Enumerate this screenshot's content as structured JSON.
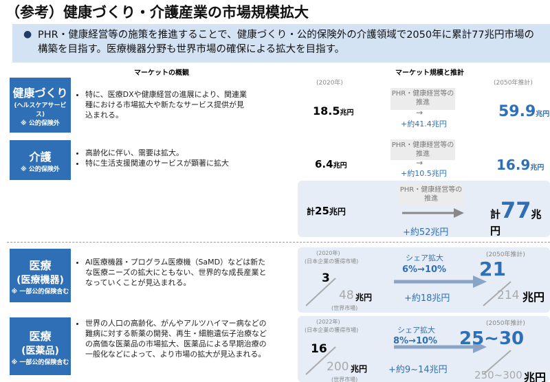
{
  "header": {
    "title": "（参考）健康づくり・介護産業の市場規模拡大"
  },
  "banner": {
    "text": "PHR・健康経営等の施策を推進することで、健康づくり・公的保険外の介護領域で2050年に累計77兆円市場の構築を目指す。医療機器分野も世界市場の確保による拡大を目指す。"
  },
  "columns": {
    "overview": "マーケットの概観",
    "market": "マーケット規模と推計",
    "base_year": "(2020年)",
    "target_year": "(2050年推計)"
  },
  "rows": [
    {
      "label": "健康づくり",
      "sub": "(ヘルスケアサービス)",
      "note": "※ 公的保険外",
      "bullets": [
        "特に、医療DXや健康経営の進展により、関連業種における市場拡大や新たなサービス提供が見込まれる。"
      ],
      "now": "18.5",
      "unit": "兆円",
      "driver": "PHR・健康経営等の推進",
      "growth": "+約41.4兆円",
      "future": "59.9"
    },
    {
      "label": "介護",
      "note": "※ 公的保険外",
      "bullets": [
        "高齢化に伴い、需要は拡大。",
        "特に生活支援関連のサービスが顕著に拡大"
      ],
      "now": "6.4",
      "unit": "兆円",
      "driver": "PHR・健康経営等の推進",
      "growth": "+約10.5兆円",
      "future": "16.9"
    }
  ],
  "total": {
    "now_prefix": "計",
    "now": "25",
    "unit": "兆円",
    "driver": "PHR・健康経営等の推進",
    "growth": "+約52兆円",
    "future": "77"
  },
  "medical": [
    {
      "label": "医療",
      "sub": "(医療機器)",
      "note": "※ 一部公的保険含む",
      "bullets": [
        "AI医療機器・プログラム医療機（SaMD）などは新たな医療ニーズの拡大にともない、世界的な成長産業となっていくことが見込まれる。"
      ],
      "base_year": "(2020年)",
      "share_label": "(日本企業の獲得市場)",
      "share_now": "3",
      "world_now": "48",
      "unit": "兆円",
      "world_label": "(世界市場)",
      "driver": "シェア拡大",
      "share_change": "6%→10%",
      "growth": "+約18兆円",
      "target_year": "(2050年推計)",
      "share_future": "21",
      "world_future": "214"
    },
    {
      "label": "医療",
      "sub": "(医薬品)",
      "note": "※ 一部公的保険含む",
      "bullets": [
        "世界の人口の高齢化、がんやアルツハイマー病などの難病に対する新薬の開発、再生・細胞遺伝子治療などの高価な医薬品の市場拡大、医薬品による早期治療の一般化などによって、より市場の拡大が見込まれる。"
      ],
      "base_year": "(2022年)",
      "share_label": "(日本企業の獲得市場)",
      "share_now": "16",
      "world_now": "200",
      "unit": "兆円",
      "world_label": "(世界市場)",
      "driver": "シェア拡大",
      "share_change": "8%→10%",
      "growth": "+約9~14兆円",
      "target_year": "(2050年推計)",
      "share_future": "25~30",
      "world_future": "250~300"
    }
  ]
}
